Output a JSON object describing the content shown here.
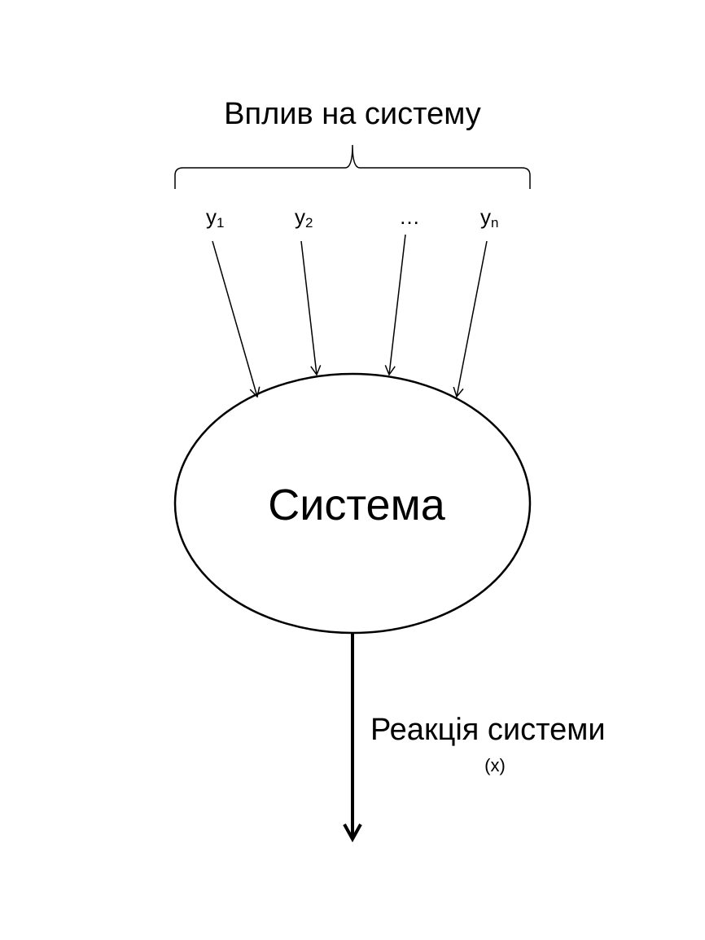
{
  "diagram": {
    "influence_label": "Вплив на систему",
    "inputs": [
      {
        "base": "y",
        "sub": "1"
      },
      {
        "base": "y",
        "sub": "2"
      },
      {
        "base": "…",
        "sub": ""
      },
      {
        "base": "y",
        "sub": "n"
      }
    ],
    "system_label": "Система",
    "reaction_label": "Реакція системи",
    "output_label": "(x)"
  }
}
